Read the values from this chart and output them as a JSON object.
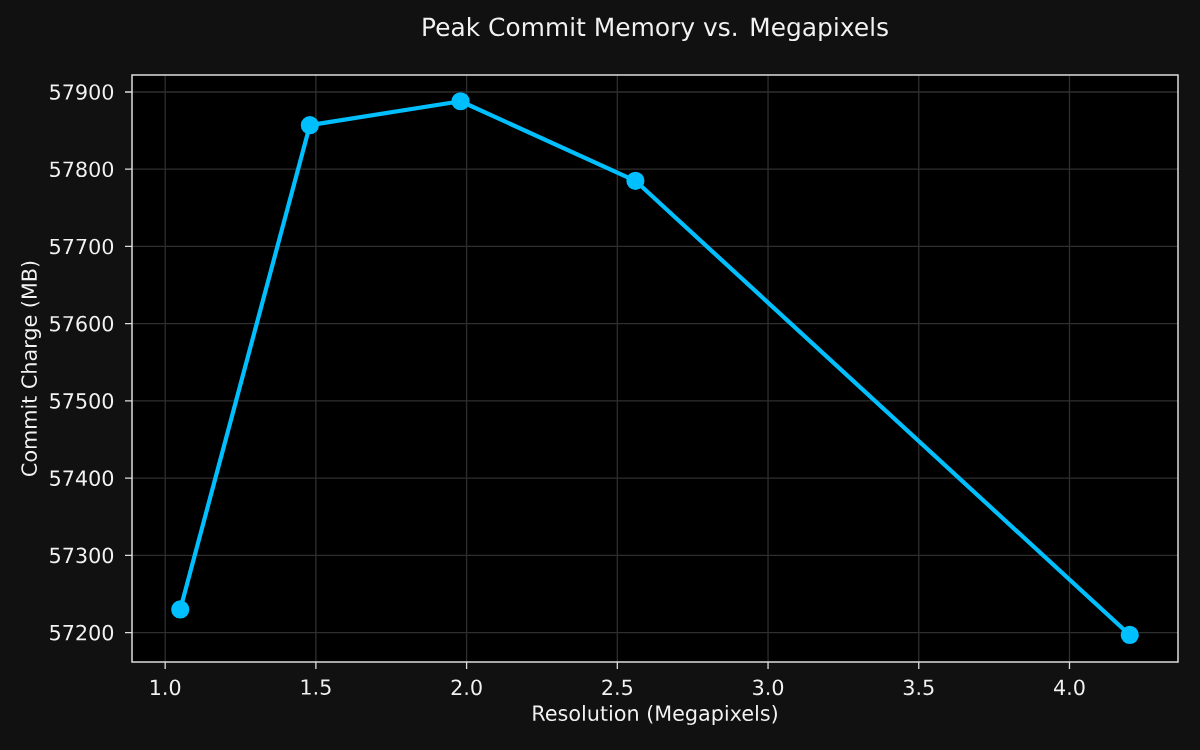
{
  "chart_data": {
    "type": "line",
    "title": "Peak Commit Memory vs. Megapixels",
    "xlabel": "Resolution (Megapixels)",
    "ylabel": "Commit Charge (MB)",
    "x": [
      1.05,
      1.48,
      1.98,
      2.56,
      4.2
    ],
    "values": [
      57230,
      57857,
      57888,
      57785,
      57197
    ],
    "color": "#00bfff",
    "xlim": [
      0.89,
      4.36
    ],
    "ylim": [
      57162,
      57922
    ],
    "xticks": [
      {
        "value": 1,
        "label": "1.0"
      },
      1.5,
      {
        "value": 2,
        "label": "2.0"
      },
      2.5,
      {
        "value": 3,
        "label": "3.0"
      },
      3.5,
      {
        "value": 4,
        "label": "4.0"
      }
    ],
    "yticks": [
      57200,
      57300,
      57400,
      57500,
      57600,
      57700,
      57800,
      57900
    ],
    "grid": true,
    "marker": "circle",
    "line_style": "solid"
  }
}
